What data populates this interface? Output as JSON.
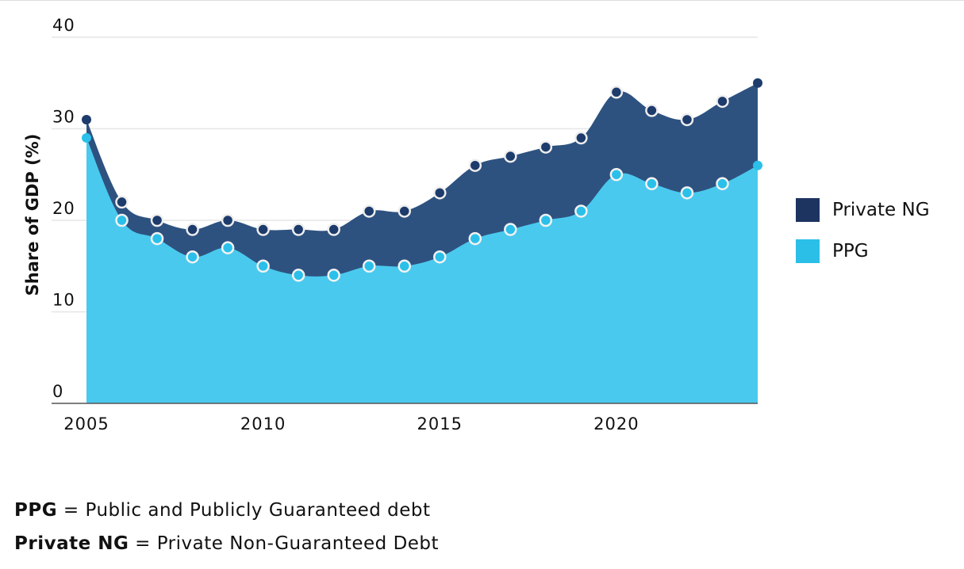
{
  "chart_data": {
    "type": "area",
    "stacked": true,
    "x": [
      2005,
      2006,
      2007,
      2008,
      2009,
      2010,
      2011,
      2012,
      2013,
      2014,
      2015,
      2016,
      2017,
      2018,
      2019,
      2020,
      2021,
      2022,
      2023,
      2024
    ],
    "series": [
      {
        "name": "PPG",
        "color": "#2bbfe8",
        "values": [
          29,
          20,
          18,
          16,
          17,
          15,
          14,
          14,
          15,
          15,
          16,
          18,
          19,
          20,
          21,
          25,
          24,
          23,
          24,
          26
        ]
      },
      {
        "name": "Private NG",
        "color": "#1d3461",
        "values": [
          2,
          2,
          2,
          3,
          3,
          4,
          5,
          5,
          6,
          6,
          7,
          8,
          8,
          8,
          8,
          9,
          8,
          8,
          9,
          9
        ]
      }
    ],
    "totals": [
      31,
      22,
      20,
      19,
      20,
      19,
      19,
      19,
      21,
      21,
      23,
      26,
      27,
      28,
      29,
      34,
      32,
      31,
      33,
      35
    ],
    "ylabel": "Share of GDP (%)",
    "xlabel": "",
    "ylim": [
      0,
      40
    ],
    "yticks": [
      "0",
      "10",
      "20",
      "30",
      "40"
    ],
    "xticks": [
      "2005",
      "2010",
      "2015",
      "2020"
    ],
    "grid": true,
    "legend_position": "right"
  },
  "legend": [
    {
      "label": "Private NG",
      "color": "#1d3461"
    },
    {
      "label": "PPG",
      "color": "#2bbfe8"
    }
  ],
  "notes": [
    {
      "term": "PPG",
      "definition": " = Public and Publicly Guaranteed debt"
    },
    {
      "term": "Private NG",
      "definition": " = Private Non-Guaranteed Debt"
    }
  ]
}
